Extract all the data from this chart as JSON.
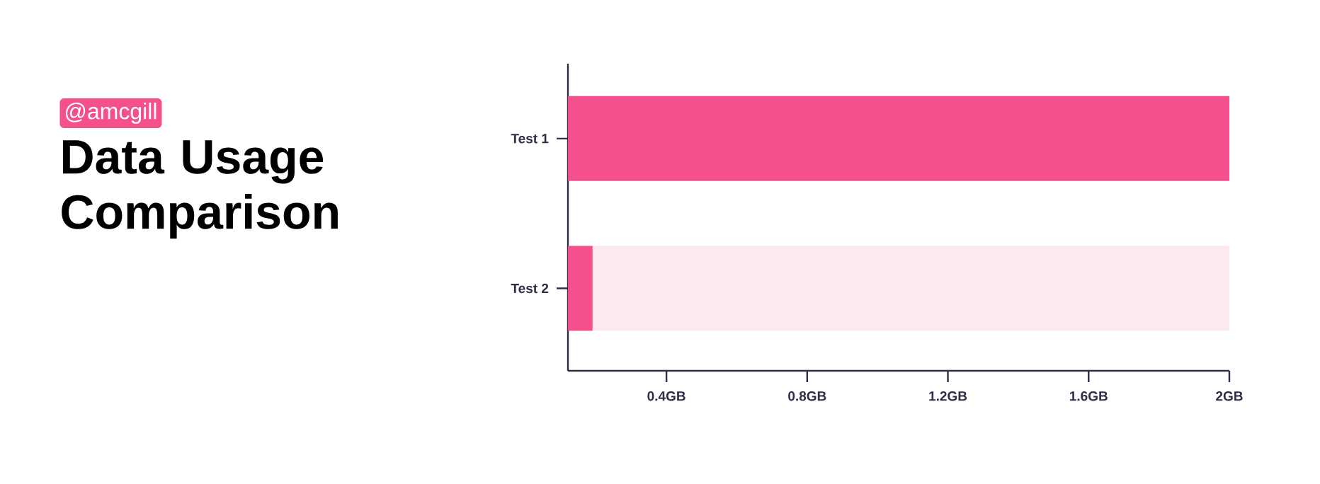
{
  "chart_data": {
    "type": "bar",
    "orientation": "horizontal",
    "stacked": true,
    "title": "Data Usage Comparison",
    "subtitle": "@amcgill",
    "categories": [
      "Test 1",
      "Test 2"
    ],
    "series": [
      {
        "color": "#f4508e",
        "values": [
          2,
          0.19
        ]
      },
      {
        "color": "#fce8ef",
        "values": [
          null,
          1.81
        ]
      }
    ],
    "xlim": [
      0.12,
      2
    ],
    "xticks": [
      {
        "value": 0.4,
        "label": "0.4GB"
      },
      {
        "value": 0.8,
        "label": "0.8GB"
      },
      {
        "value": 1.2,
        "label": "1.2GB"
      },
      {
        "value": 1.6,
        "label": "1.6GB"
      },
      {
        "value": 2,
        "label": "2GB"
      }
    ]
  }
}
